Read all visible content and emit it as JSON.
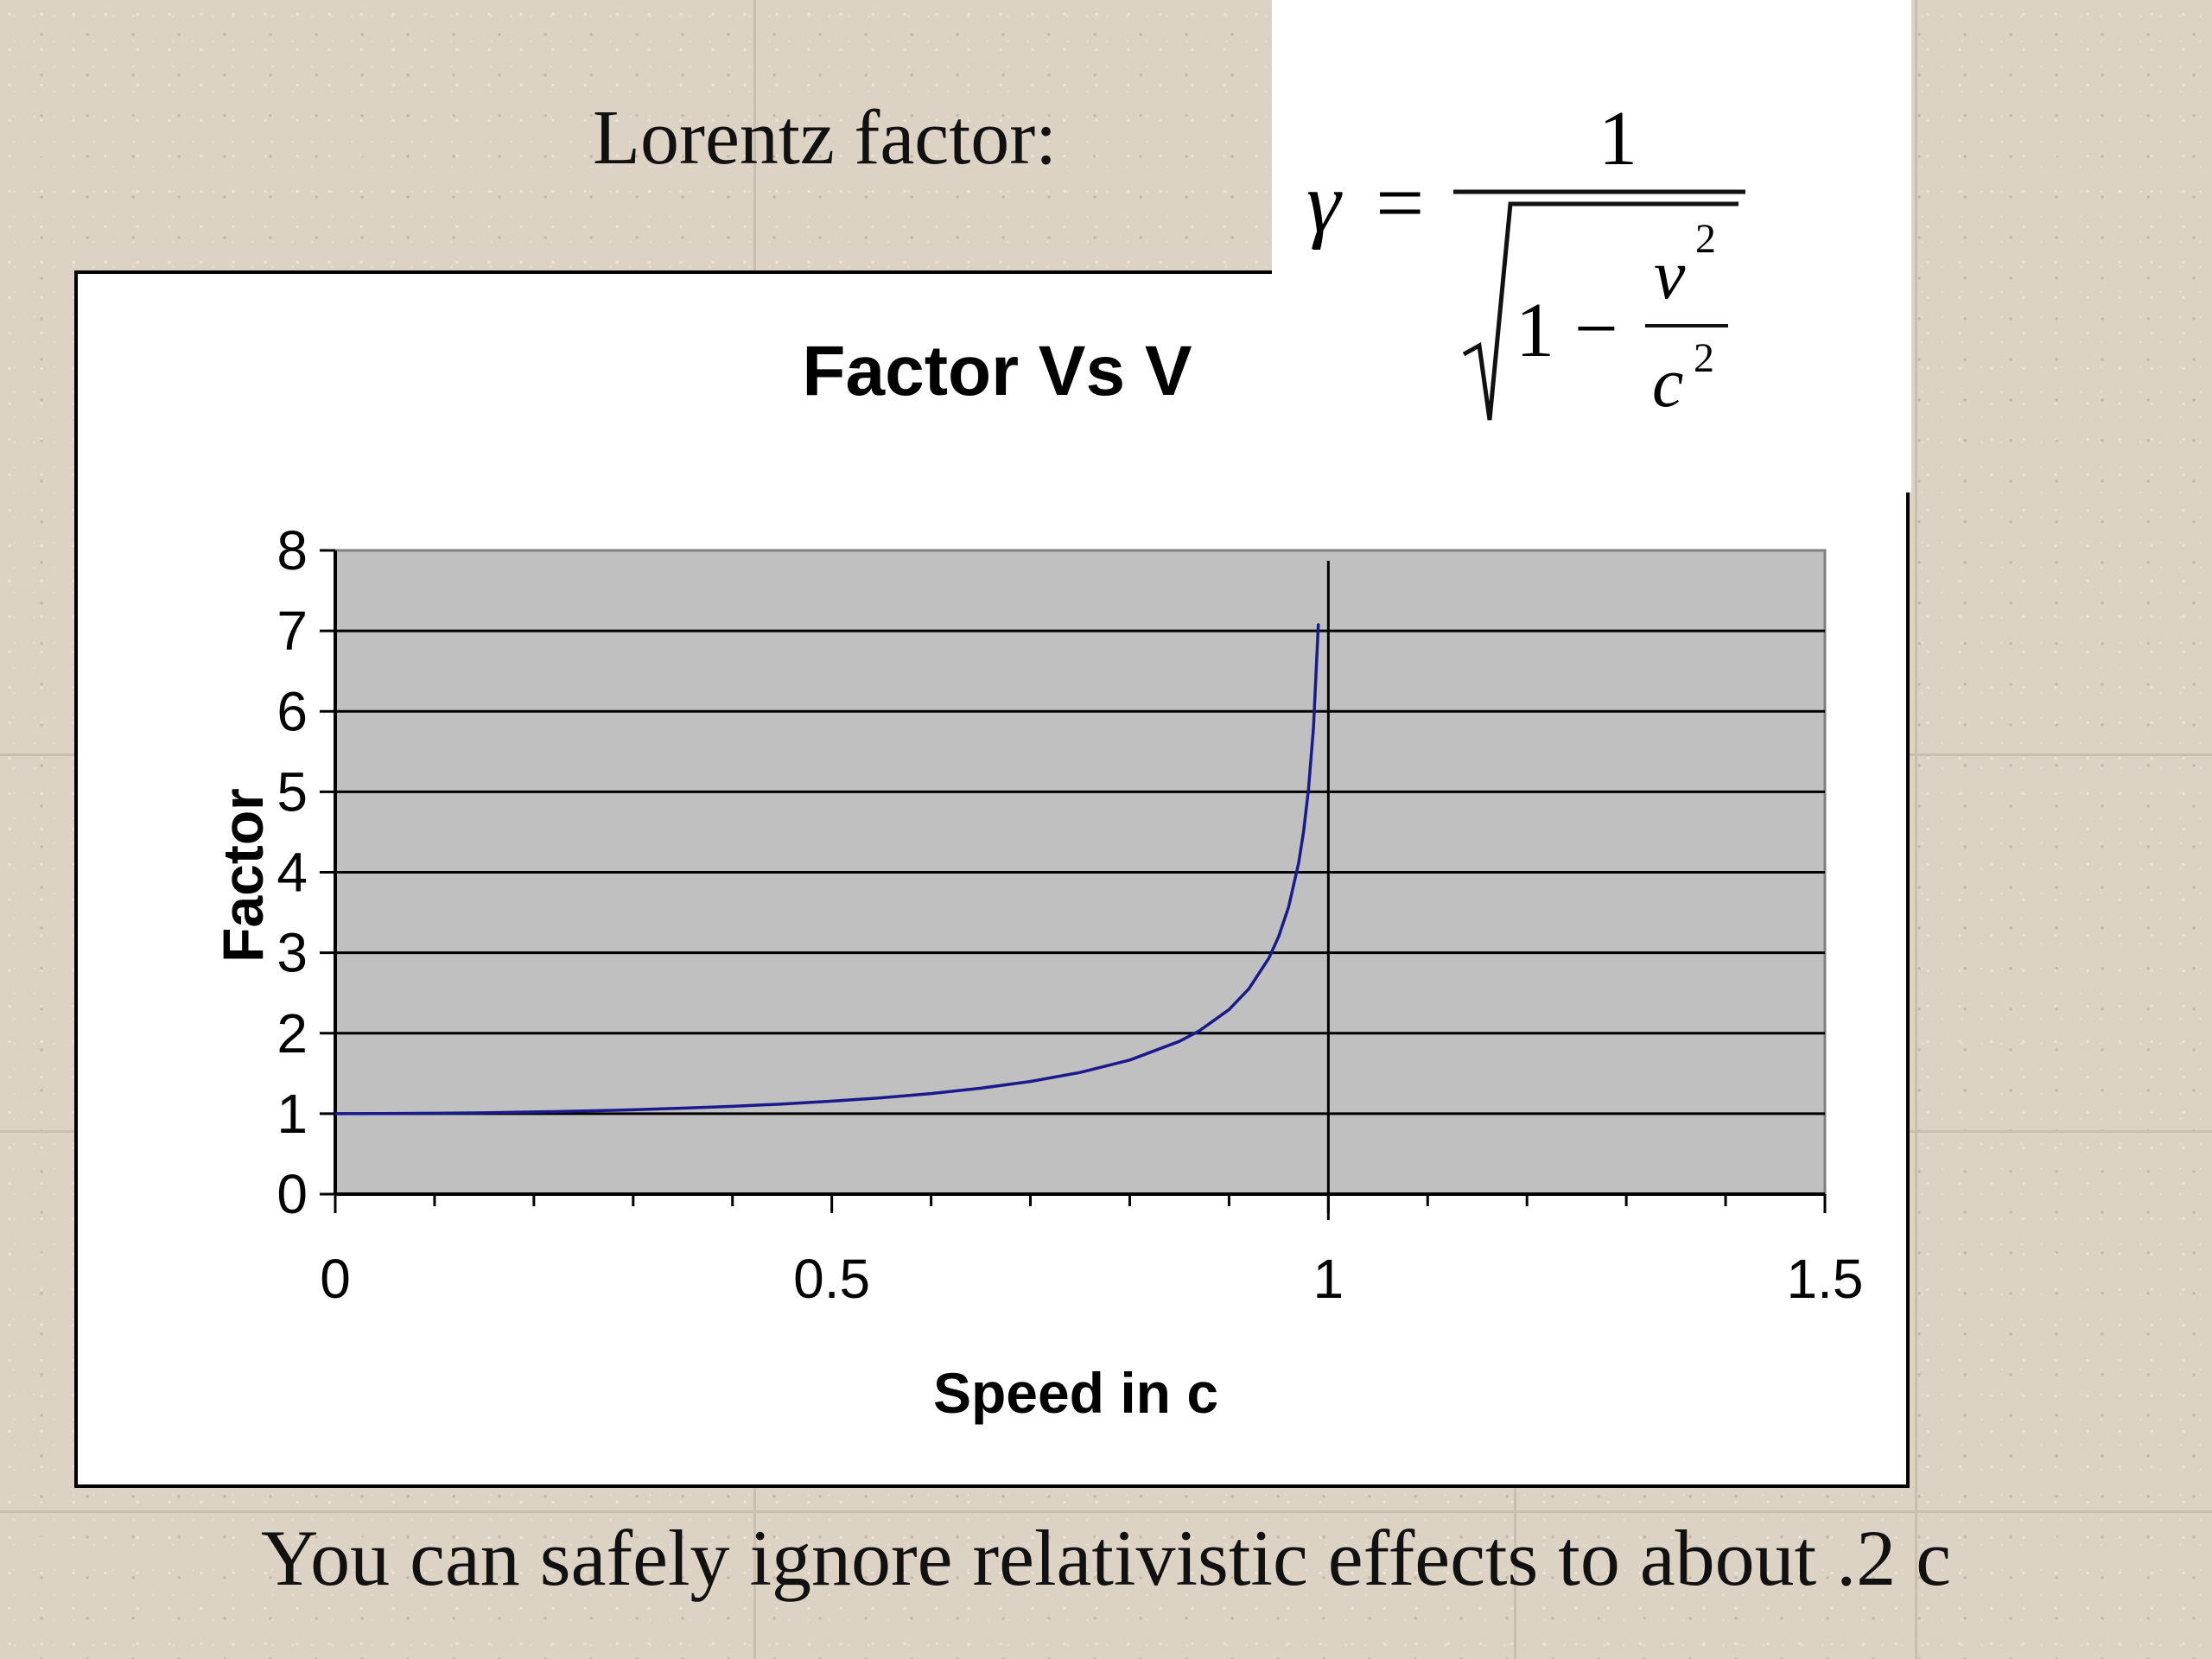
{
  "slide": {
    "heading": "Lorentz factor:",
    "footer": "You can safely ignore relativistic effects to about .2 c"
  },
  "formula": {
    "lhs": "γ",
    "equals": "=",
    "numerator": "1",
    "one": "1",
    "minus": "−",
    "v": "v",
    "c": "c",
    "exponent": "2"
  },
  "colors": {
    "plot_background": "#c0c0c0",
    "series_line": "#1a1a8c",
    "gridline": "#000000",
    "panel": "#ffffff"
  },
  "chart_data": {
    "type": "line",
    "title": "Factor Vs V",
    "xlabel": "Speed in c",
    "ylabel": "Factor",
    "xlim": [
      0,
      1.5
    ],
    "ylim": [
      0,
      8
    ],
    "x_ticks": [
      "0",
      "0.5",
      "1",
      "1.5"
    ],
    "y_ticks": [
      "0",
      "1",
      "2",
      "3",
      "4",
      "5",
      "6",
      "7",
      "8"
    ],
    "grid": true,
    "vertical_marker_x": 1,
    "series": [
      {
        "x": [
          0,
          0.05,
          0.1,
          0.15,
          0.2,
          0.25,
          0.28,
          0.3,
          0.35,
          0.4,
          0.45,
          0.5,
          0.55,
          0.6,
          0.65,
          0.7,
          0.75,
          0.8,
          0.85,
          0.87,
          0.9,
          0.92,
          0.94,
          0.95,
          0.96,
          0.97,
          0.975,
          0.98,
          0.985,
          0.99
        ],
        "y": [
          1.0,
          1.001,
          1.005,
          1.011,
          1.021,
          1.033,
          1.042,
          1.048,
          1.068,
          1.091,
          1.12,
          1.155,
          1.197,
          1.25,
          1.316,
          1.4,
          1.512,
          1.667,
          1.898,
          2.028,
          2.294,
          2.552,
          2.931,
          3.203,
          3.571,
          4.113,
          4.5,
          5.025,
          5.795,
          7.089
        ]
      }
    ]
  }
}
